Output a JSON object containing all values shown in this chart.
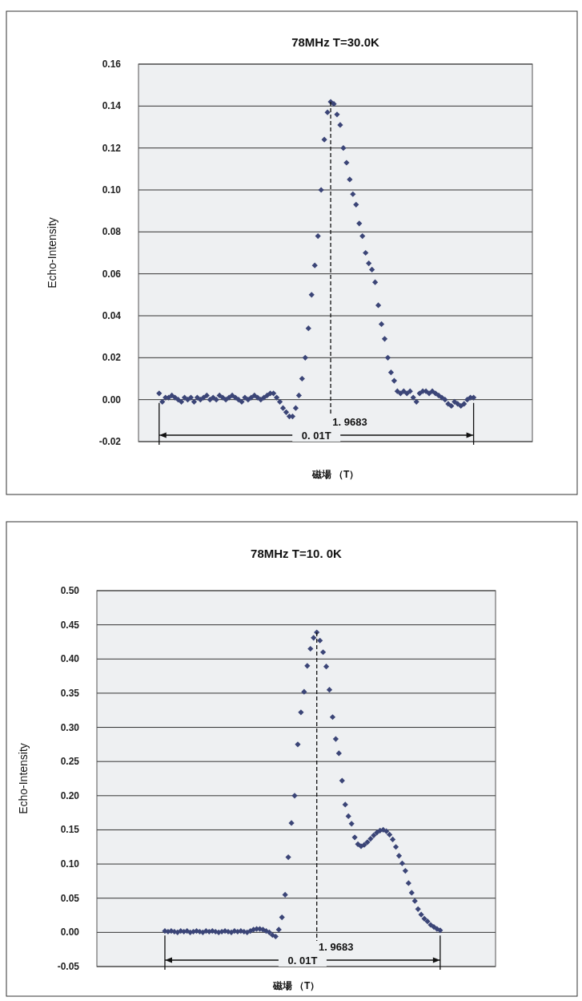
{
  "chart_data": [
    {
      "type": "scatter",
      "title": "78MHz  T=30.0K",
      "xlabel": "磁場 （T）",
      "ylabel": "Echo-Intensity",
      "categories": [
        null,
        null,
        null,
        null,
        null,
        null,
        null,
        null,
        null,
        null,
        null,
        null,
        null,
        null,
        null,
        null,
        null,
        null,
        null,
        null,
        null,
        null,
        null,
        null,
        null,
        null,
        null,
        null,
        null,
        null,
        null,
        null,
        null,
        null,
        null,
        null,
        null,
        null,
        null,
        null,
        null,
        null,
        null,
        null,
        null,
        null,
        null,
        null,
        null,
        null,
        null,
        null,
        null,
        null,
        null,
        null,
        null,
        null,
        null,
        null,
        null,
        null,
        null,
        null,
        null,
        null,
        null,
        null,
        null,
        null,
        null,
        null,
        null,
        null,
        null,
        null,
        null,
        null,
        null,
        null,
        null,
        null,
        null,
        null,
        null,
        null,
        null,
        null,
        null,
        null,
        null,
        null,
        null,
        null,
        null,
        null,
        null,
        null,
        null,
        null,
        null,
        null,
        null,
        null,
        null,
        null,
        null,
        null,
        null,
        null,
        null,
        null,
        null,
        null,
        null,
        null,
        null,
        null,
        null,
        null,
        null,
        null,
        null,
        null
      ],
      "ylim": [
        -0.02,
        0.16
      ],
      "yticks": [
        {
          "value": -0.02,
          "label": "-0.02"
        },
        {
          "value": 0,
          "label": "0.00"
        },
        {
          "value": 0.02,
          "label": "0.02"
        },
        {
          "value": 0.04,
          "label": "0.04"
        },
        {
          "value": 0.06,
          "label": "0.06"
        },
        {
          "value": 0.08,
          "label": "0.08"
        },
        {
          "value": 0.1,
          "label": "0.10"
        },
        {
          "value": 0.12,
          "label": "0.12"
        },
        {
          "value": 0.14,
          "label": "0.14"
        },
        {
          "value": 0.16,
          "label": "0.16"
        }
      ],
      "tick_labels": "y",
      "grid": "y",
      "marker": "diamond",
      "annotations": [
        "1. 9683",
        "0. 01T"
      ],
      "series": [
        {
          "color": "#3b4577",
          "values": [
            null,
            null,
            null,
            null,
            null,
            null,
            0.003,
            -0.001,
            0.001,
            0.001,
            0.002,
            0.001,
            0.0,
            -0.001,
            0.001,
            0.0,
            0.001,
            -0.001,
            0.001,
            0.0,
            0.001,
            0.002,
            0.0,
            0.001,
            0.0,
            0.002,
            0.001,
            0.0,
            0.001,
            0.002,
            0.001,
            0.0,
            -0.001,
            0.001,
            0.0,
            0.001,
            0.002,
            0.001,
            0.0,
            0.001,
            0.002,
            0.003,
            0.003,
            0.001,
            -0.001,
            -0.004,
            -0.006,
            -0.008,
            -0.008,
            -0.004,
            0.002,
            0.01,
            0.02,
            0.034,
            0.05,
            0.064,
            0.078,
            0.1,
            0.124,
            0.137,
            0.142,
            0.141,
            0.136,
            0.131,
            0.12,
            0.113,
            0.105,
            0.098,
            0.093,
            0.084,
            0.078,
            0.07,
            0.065,
            0.062,
            0.056,
            0.045,
            0.036,
            0.029,
            0.02,
            0.013,
            0.009,
            0.004,
            0.003,
            0.004,
            0.003,
            0.004,
            0.001,
            -0.001,
            0.003,
            0.004,
            0.004,
            0.003,
            0.004,
            0.003,
            0.002,
            0.001,
            0.0,
            -0.002,
            -0.003,
            -0.001,
            -0.002,
            -0.003,
            -0.002,
            0.0,
            0.001,
            0.001,
            null,
            null,
            null,
            null,
            null,
            null,
            null,
            null,
            null,
            null,
            null,
            null,
            null,
            null,
            null,
            null,
            null,
            null
          ]
        }
      ]
    },
    {
      "type": "scatter",
      "title": "78MHz    T=10. 0K",
      "xlabel": "磁場 （T）",
      "ylabel": "Echo-Intensity",
      "categories": [
        null,
        null,
        null,
        null,
        null,
        null,
        null,
        null,
        null,
        null,
        null,
        null,
        null,
        null,
        null,
        null,
        null,
        null,
        null,
        null,
        null,
        null,
        null,
        null,
        null,
        null,
        null,
        null,
        null,
        null,
        null,
        null,
        null,
        null,
        null,
        null,
        null,
        null,
        null,
        null,
        null,
        null,
        null,
        null,
        null,
        null,
        null,
        null,
        null,
        null,
        null,
        null,
        null,
        null,
        null,
        null,
        null,
        null,
        null,
        null,
        null,
        null,
        null,
        null,
        null,
        null,
        null,
        null,
        null,
        null,
        null,
        null,
        null,
        null,
        null,
        null,
        null,
        null,
        null,
        null,
        null,
        null,
        null,
        null,
        null,
        null,
        null,
        null,
        null,
        null,
        null,
        null,
        null,
        null,
        null,
        null,
        null,
        null,
        null,
        null,
        null,
        null,
        null,
        null,
        null,
        null,
        null,
        null,
        null,
        null,
        null,
        null,
        null,
        null,
        null,
        null,
        null,
        null,
        null,
        null,
        null,
        null,
        null,
        null,
        null,
        null
      ],
      "ylim": [
        -0.05,
        0.5
      ],
      "yticks": [
        {
          "value": -0.05,
          "label": "-0.05"
        },
        {
          "value": 0,
          "label": "0.00"
        },
        {
          "value": 0.05,
          "label": "0.05"
        },
        {
          "value": 0.1,
          "label": "0.10"
        },
        {
          "value": 0.15,
          "label": "0.15"
        },
        {
          "value": 0.2,
          "label": "0.20"
        },
        {
          "value": 0.25,
          "label": "0.25"
        },
        {
          "value": 0.3,
          "label": "0.30"
        },
        {
          "value": 0.35,
          "label": "0.35"
        },
        {
          "value": 0.4,
          "label": "0.40"
        },
        {
          "value": 0.45,
          "label": "0.45"
        },
        {
          "value": 0.5,
          "label": "0.50"
        }
      ],
      "tick_labels": "y",
      "grid": "y",
      "marker": "diamond",
      "annotations": [
        "1. 9683",
        "0. 01T"
      ],
      "series": [
        {
          "color": "#3b4577",
          "values": [
            null,
            null,
            null,
            null,
            null,
            null,
            null,
            null,
            null,
            null,
            null,
            null,
            null,
            null,
            null,
            null,
            null,
            null,
            null,
            null,
            null,
            0.002,
            0.001,
            0.002,
            0.001,
            0.0,
            0.002,
            0.001,
            0.002,
            0.0,
            0.001,
            0.002,
            0.001,
            0.0,
            0.002,
            0.001,
            0.002,
            0.001,
            0.0,
            0.001,
            0.002,
            0.001,
            0.0,
            0.002,
            0.001,
            0.002,
            0.001,
            0.0,
            0.002,
            0.004,
            0.005,
            0.005,
            0.004,
            0.002,
            0.0,
            -0.004,
            -0.006,
            0.004,
            0.022,
            0.055,
            0.11,
            0.16,
            0.2,
            0.275,
            0.322,
            0.352,
            0.39,
            0.415,
            0.431,
            0.439,
            0.427,
            0.41,
            0.389,
            0.355,
            0.315,
            0.283,
            0.262,
            0.222,
            0.187,
            0.17,
            0.159,
            0.139,
            0.129,
            0.126,
            0.128,
            0.132,
            0.137,
            0.142,
            0.146,
            0.149,
            0.15,
            0.148,
            0.143,
            0.136,
            0.125,
            0.112,
            0.101,
            0.09,
            0.072,
            0.058,
            0.046,
            0.034,
            0.026,
            0.02,
            0.016,
            0.011,
            0.008,
            0.005,
            0.003,
            null,
            null,
            null,
            null,
            null,
            null,
            null,
            null,
            null,
            null,
            null,
            null,
            null,
            null,
            null,
            null,
            null
          ]
        }
      ]
    }
  ]
}
